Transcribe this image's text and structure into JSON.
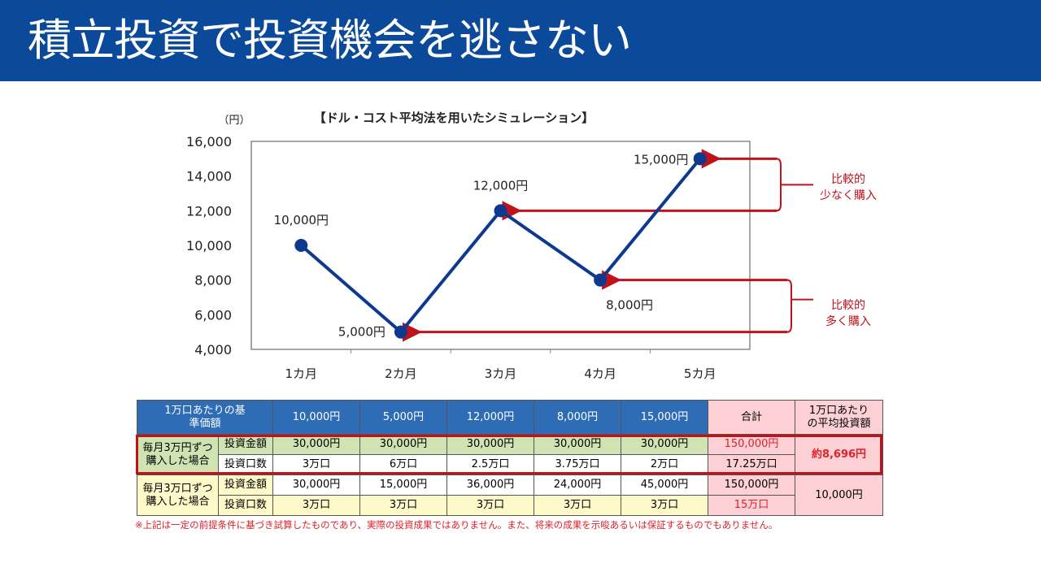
{
  "slide_title": "積立投資で投資機会を逃さない",
  "chart_data": {
    "type": "line",
    "title": "【ドル・コスト平均法を用いたシミュレーション】",
    "ylabel": "（円）",
    "categories": [
      "1カ月",
      "2カ月",
      "3カ月",
      "4カ月",
      "5カ月"
    ],
    "values": [
      10000,
      5000,
      12000,
      8000,
      15000
    ],
    "data_labels": [
      "10,000円",
      "5,000円",
      "12,000円",
      "8,000円",
      "15,000円"
    ],
    "ylim": [
      4000,
      16000
    ],
    "yticks": [
      "4,000",
      "6,000",
      "8,000",
      "10,000",
      "12,000",
      "14,000",
      "16,000"
    ],
    "grid": false,
    "line_color": "#0d3a8f",
    "annotations": [
      {
        "text1": "比較的",
        "text2": "少なく購入",
        "points": [
          "12,000円",
          "15,000円"
        ]
      },
      {
        "text1": "比較的",
        "text2": "多く購入",
        "points": [
          "5,000円",
          "8,000円"
        ]
      }
    ],
    "annotation_color": "#c0121b"
  },
  "table": {
    "header": [
      "1万口あたりの基準価額",
      "10,000円",
      "5,000円",
      "12,000円",
      "8,000円",
      "15,000円",
      "合計",
      "1万口あたりの平均投資額"
    ],
    "groups": [
      {
        "label": "毎月3万円ずつ購入した場合",
        "rows": [
          {
            "label": "投資金額",
            "values": [
              "30,000円",
              "30,000円",
              "30,000円",
              "30,000円",
              "30,000円"
            ],
            "total": "150,000円"
          },
          {
            "label": "投資口数",
            "values": [
              "3万口",
              "6万口",
              "2.5万口",
              "3.75万口",
              "2万口"
            ],
            "total": "17.25万口"
          }
        ],
        "average": "約8,696円"
      },
      {
        "label": "毎月3万口ずつ購入した場合",
        "rows": [
          {
            "label": "投資金額",
            "values": [
              "30,000円",
              "15,000円",
              "36,000円",
              "24,000円",
              "45,000円"
            ],
            "total": "150,000円"
          },
          {
            "label": "投資口数",
            "values": [
              "3万口",
              "3万口",
              "3万口",
              "3万口",
              "3万口"
            ],
            "total": "15万口"
          }
        ],
        "average": "10,000円"
      }
    ]
  },
  "note": "※上記は一定の前提条件に基づき試算したものであり、実際の投資成果ではありません。また、将来の成果を示唆あるいは保証するものでもありません。"
}
